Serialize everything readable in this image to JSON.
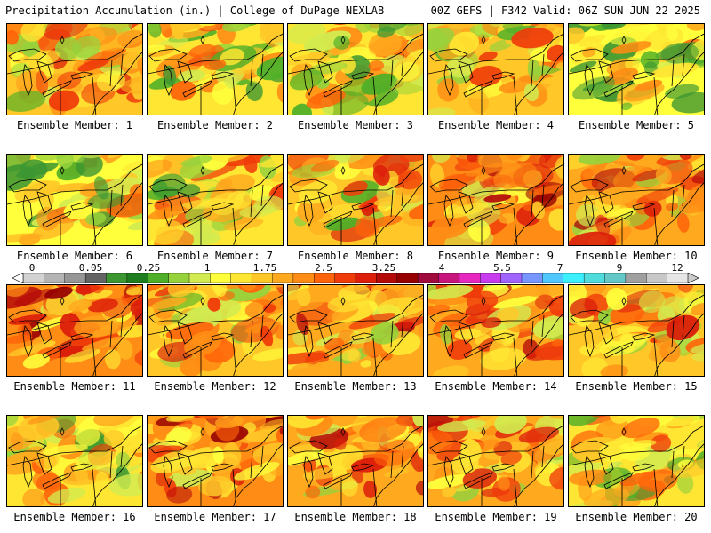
{
  "header": {
    "title": "Precipitation Accumulation (in.) | College of DuPage NEXLAB",
    "run_info": "00Z GEFS | F342 Valid: 06Z SUN JUN 22 2025"
  },
  "colors": {
    "legend_bins": [
      "#d2d2d2",
      "#b4b4b4",
      "#969696",
      "#646464",
      "#3c9632",
      "#1e7d1e",
      "#50af28",
      "#96d23c",
      "#d2eb50",
      "#ffff3c",
      "#ffe632",
      "#ffc828",
      "#ffaa1e",
      "#ff8c14",
      "#ff640a",
      "#f03c0a",
      "#dc1e0a",
      "#b40a0a",
      "#960000",
      "#a00a3c",
      "#c8147d",
      "#e628be",
      "#c83cf0",
      "#a064ff",
      "#7896ff",
      "#50c8ff",
      "#3cf0ff",
      "#50dcdc",
      "#64c8c8",
      "#a0a0a0",
      "#c8c8c8",
      "#e6e6e6"
    ],
    "map_lines": "#000000"
  },
  "colorbar": {
    "tick_labels": [
      "0",
      "0.05",
      "0.25",
      "1",
      "1.75",
      "2.5",
      "3.25",
      "4",
      "5.5",
      "7",
      "9",
      "12"
    ]
  },
  "members": [
    {
      "label": "Ensemble Member: 1",
      "intensity": 0.55
    },
    {
      "label": "Ensemble Member: 2",
      "intensity": 0.45
    },
    {
      "label": "Ensemble Member: 3",
      "intensity": 0.45
    },
    {
      "label": "Ensemble Member: 4",
      "intensity": 0.55
    },
    {
      "label": "Ensemble Member: 5",
      "intensity": 0.35
    },
    {
      "label": "Ensemble Member: 6",
      "intensity": 0.4
    },
    {
      "label": "Ensemble Member: 7",
      "intensity": 0.5
    },
    {
      "label": "Ensemble Member: 8",
      "intensity": 0.55
    },
    {
      "label": "Ensemble Member: 9",
      "intensity": 0.75
    },
    {
      "label": "Ensemble Member: 10",
      "intensity": 0.7
    },
    {
      "label": "Ensemble Member: 11",
      "intensity": 0.75
    },
    {
      "label": "Ensemble Member: 12",
      "intensity": 0.55
    },
    {
      "label": "Ensemble Member: 13",
      "intensity": 0.65
    },
    {
      "label": "Ensemble Member: 14",
      "intensity": 0.65
    },
    {
      "label": "Ensemble Member: 15",
      "intensity": 0.6
    },
    {
      "label": "Ensemble Member: 16",
      "intensity": 0.5
    },
    {
      "label": "Ensemble Member: 17",
      "intensity": 0.75
    },
    {
      "label": "Ensemble Member: 18",
      "intensity": 0.7
    },
    {
      "label": "Ensemble Member: 19",
      "intensity": 0.7
    },
    {
      "label": "Ensemble Member: 20",
      "intensity": 0.45
    }
  ]
}
